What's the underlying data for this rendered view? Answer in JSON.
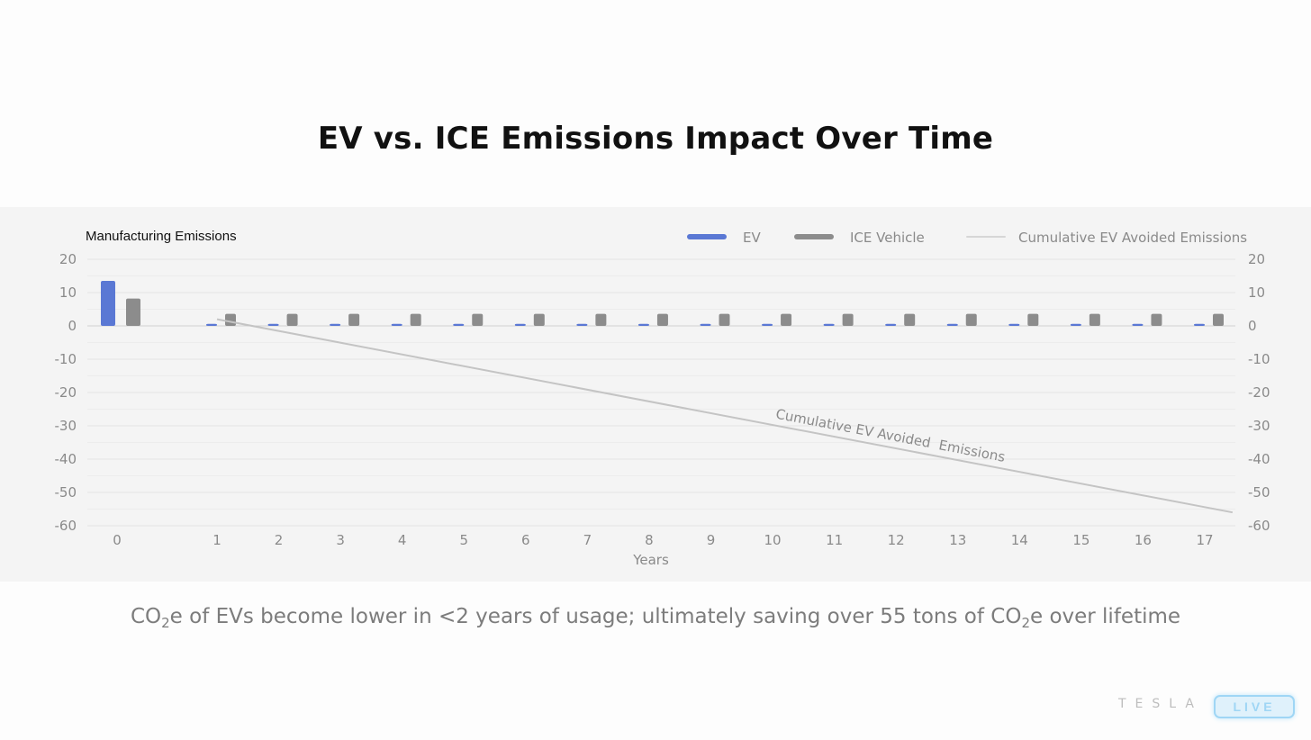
{
  "slide": {
    "title": "EV vs. ICE Emissions Impact Over Time",
    "caption_parts": [
      "CO",
      "2",
      "e of EVs become lower in <2 years of usage; ultimately saving over 55 tons of CO",
      "2",
      "e over lifetime"
    ],
    "brand": "TESLA",
    "badge": "LIVE"
  },
  "chart_data": {
    "type": "bar",
    "title": "",
    "annotation_top_left": "Manufacturing Emissions",
    "xlabel": "Years",
    "ylabel": "",
    "ylim": [
      -60,
      20
    ],
    "yticks": [
      20,
      10,
      0,
      -10,
      -20,
      -30,
      -40,
      -50,
      -60
    ],
    "categories": [
      "0",
      "1",
      "2",
      "3",
      "4",
      "5",
      "6",
      "7",
      "8",
      "9",
      "10",
      "11",
      "12",
      "13",
      "14",
      "15",
      "16",
      "17"
    ],
    "series": [
      {
        "name": "EV",
        "type": "bar",
        "color": "#5a78d4",
        "values": [
          13.5,
          0.6,
          0.6,
          0.6,
          0.6,
          0.6,
          0.6,
          0.6,
          0.6,
          0.6,
          0.6,
          0.6,
          0.6,
          0.6,
          0.6,
          0.6,
          0.6,
          0.6
        ]
      },
      {
        "name": "ICE Vehicle",
        "type": "bar",
        "color": "#8c8c8c",
        "values": [
          8.2,
          3.6,
          3.6,
          3.6,
          3.6,
          3.6,
          3.6,
          3.6,
          3.6,
          3.6,
          3.6,
          3.6,
          3.6,
          3.6,
          3.6,
          3.6,
          3.6,
          3.6
        ]
      },
      {
        "name": "Cumulative EV Avoided Emissions",
        "type": "line",
        "color": "#c4c4c4",
        "x": [
          1,
          17.45
        ],
        "y": [
          2,
          -56
        ]
      }
    ],
    "line_label": "Cumulative EV Avoided  Emissions",
    "legend_position": "top-right",
    "grid": true,
    "dual_y_axis": true
  }
}
